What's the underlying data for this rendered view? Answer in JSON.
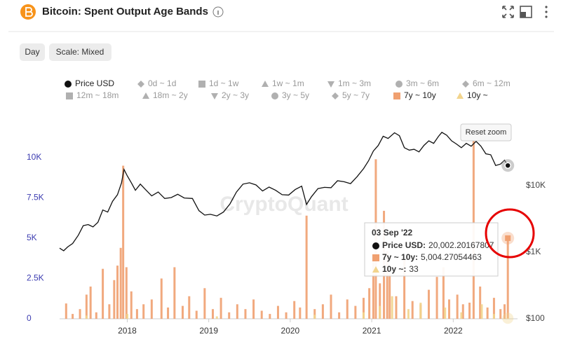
{
  "chart_data": {
    "type": "bar",
    "title": "Bitcoin: Spent Output Age Bands",
    "controls": [
      "Day",
      "Scale: Mixed"
    ],
    "reset_label": "Reset zoom",
    "watermark": "CryptoQuant",
    "xlim": [
      2017.17,
      2022.72
    ],
    "xticks": [
      2018,
      2019,
      2020,
      2021,
      2022
    ],
    "ylim": [
      0,
      12000
    ],
    "yticks": [
      0,
      {
        "value": 2500,
        "label": "2.5K"
      },
      {
        "value": 5000,
        "label": "5K"
      },
      {
        "value": 7500,
        "label": "7.5K"
      },
      {
        "value": 10000,
        "label": "10K"
      }
    ],
    "y2lim": [
      100,
      80000
    ],
    "y2scale": "log",
    "y2ticks": [
      {
        "value": 100,
        "label": "$100"
      },
      {
        "value": 1000,
        "label": "$1K"
      },
      {
        "value": 10000,
        "label": "$10K"
      }
    ],
    "grid": false,
    "series": [
      {
        "name": "Price USD",
        "type": "line",
        "axis": "y2",
        "color": "#111111",
        "marker": "circle",
        "x": [
          2017.17,
          2017.22,
          2017.27,
          2017.33,
          2017.4,
          2017.46,
          2017.52,
          2017.58,
          2017.64,
          2017.7,
          2017.76,
          2017.82,
          2017.88,
          2017.93,
          2017.96,
          2018.0,
          2018.05,
          2018.1,
          2018.16,
          2018.22,
          2018.3,
          2018.38,
          2018.46,
          2018.54,
          2018.62,
          2018.7,
          2018.8,
          2018.88,
          2018.95,
          2019.02,
          2019.1,
          2019.18,
          2019.26,
          2019.34,
          2019.42,
          2019.5,
          2019.58,
          2019.66,
          2019.74,
          2019.82,
          2019.9,
          2019.98,
          2020.06,
          2020.14,
          2020.2,
          2020.26,
          2020.34,
          2020.42,
          2020.5,
          2020.58,
          2020.66,
          2020.74,
          2020.82,
          2020.9,
          2020.96,
          2021.02,
          2021.08,
          2021.14,
          2021.2,
          2021.28,
          2021.34,
          2021.4,
          2021.46,
          2021.52,
          2021.58,
          2021.64,
          2021.7,
          2021.76,
          2021.82,
          2021.86,
          2021.92,
          2021.98,
          2022.04,
          2022.1,
          2022.16,
          2022.22,
          2022.28,
          2022.34,
          2022.4,
          2022.46,
          2022.52,
          2022.58,
          2022.63,
          2022.67
        ],
        "values": [
          1150,
          1050,
          1200,
          1350,
          1800,
          2500,
          2600,
          2400,
          2800,
          4300,
          4000,
          5800,
          7300,
          11000,
          17500,
          14000,
          11000,
          8500,
          10500,
          8800,
          7000,
          8000,
          6400,
          6600,
          7400,
          6500,
          6400,
          4200,
          3600,
          3700,
          3500,
          4000,
          5300,
          8000,
          10500,
          11000,
          10200,
          8300,
          9500,
          8500,
          7300,
          7200,
          8700,
          9800,
          5200,
          6800,
          9000,
          9400,
          9300,
          11800,
          11400,
          10700,
          13600,
          18000,
          23500,
          33000,
          40000,
          55000,
          51000,
          62000,
          56000,
          37000,
          34000,
          35000,
          32000,
          40000,
          47000,
          43000,
          55000,
          63000,
          57000,
          47000,
          42000,
          37000,
          43000,
          39000,
          46000,
          39000,
          30000,
          29000,
          20000,
          21000,
          24000,
          20002.20167807
        ]
      },
      {
        "name": "7y ~ 10y",
        "type": "bar",
        "axis": "y",
        "color": "#f0a070",
        "marker": "square",
        "x": [
          2017.25,
          2017.33,
          2017.42,
          2017.5,
          2017.55,
          2017.62,
          2017.7,
          2017.78,
          2017.84,
          2017.88,
          2017.92,
          2017.95,
          2017.99,
          2018.05,
          2018.12,
          2018.2,
          2018.3,
          2018.42,
          2018.5,
          2018.58,
          2018.68,
          2018.76,
          2018.85,
          2018.95,
          2019.05,
          2019.15,
          2019.25,
          2019.35,
          2019.45,
          2019.55,
          2019.65,
          2019.75,
          2019.85,
          2019.95,
          2020.05,
          2020.12,
          2020.2,
          2020.3,
          2020.4,
          2020.5,
          2020.6,
          2020.7,
          2020.8,
          2020.9,
          2020.97,
          2021.02,
          2021.05,
          2021.1,
          2021.15,
          2021.19,
          2021.22,
          2021.3,
          2021.4,
          2021.5,
          2021.6,
          2021.7,
          2021.8,
          2021.88,
          2021.95,
          2022.05,
          2022.12,
          2022.2,
          2022.25,
          2022.33,
          2022.42,
          2022.5,
          2022.58,
          2022.63,
          2022.67
        ],
        "values": [
          950,
          300,
          600,
          1500,
          2000,
          400,
          3100,
          900,
          2400,
          3300,
          4400,
          9500,
          3200,
          1700,
          600,
          900,
          1200,
          2500,
          700,
          3200,
          800,
          1400,
          500,
          1900,
          600,
          1300,
          400,
          900,
          600,
          1200,
          500,
          300,
          800,
          400,
          1100,
          700,
          6400,
          600,
          900,
          1500,
          400,
          1200,
          800,
          1300,
          1900,
          3800,
          9900,
          2200,
          6700,
          4200,
          2800,
          1400,
          3700,
          1100,
          900,
          1800,
          2600,
          3200,
          1200,
          1500,
          900,
          1000,
          11400,
          2000,
          700,
          1300,
          600,
          900,
          5004.27054463
        ]
      },
      {
        "name": "10y ~",
        "type": "bar",
        "axis": "y",
        "color": "#f2d48c",
        "marker": "triangle",
        "x": [
          2017.5,
          2018.0,
          2019.1,
          2020.3,
          2020.9,
          2021.1,
          2021.25,
          2021.45,
          2021.6,
          2021.9,
          2022.1,
          2022.35,
          2022.5,
          2022.67
        ],
        "values": [
          200,
          300,
          150,
          250,
          400,
          800,
          1400,
          600,
          1000,
          700,
          400,
          900,
          300,
          33
        ]
      }
    ],
    "hidden_series": [
      {
        "name": "0d ~ 1d",
        "marker": "diamond"
      },
      {
        "name": "1d ~ 1w",
        "marker": "square"
      },
      {
        "name": "1w ~ 1m",
        "marker": "triangle"
      },
      {
        "name": "1m ~ 3m",
        "marker": "triangle-down"
      },
      {
        "name": "3m ~ 6m",
        "marker": "circle"
      },
      {
        "name": "6m ~ 12m",
        "marker": "diamond"
      },
      {
        "name": "12m ~ 18m",
        "marker": "square"
      },
      {
        "name": "18m ~ 2y",
        "marker": "triangle"
      },
      {
        "name": "2y ~ 3y",
        "marker": "triangle-down"
      },
      {
        "name": "3y ~ 5y",
        "marker": "circle"
      },
      {
        "name": "5y ~ 7y",
        "marker": "diamond"
      }
    ],
    "hidden_color": "#b0b0b0",
    "tooltip": {
      "title": "03 Sep '22",
      "rows": [
        {
          "name": "Price USD:",
          "value": 20002.20167807,
          "label": "20,002.20167807"
        },
        {
          "name": "7y ~ 10y:",
          "value": 5004.27054463,
          "label": "5,004.27054463"
        },
        {
          "name": "10y ~:",
          "value": 33,
          "label": "33"
        }
      ]
    }
  }
}
